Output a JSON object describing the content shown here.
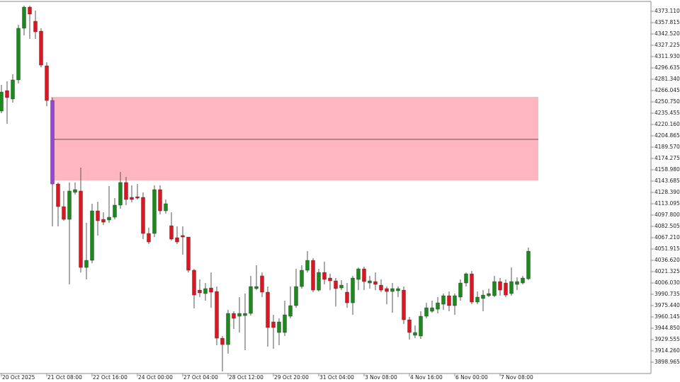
{
  "chart_data": {
    "type": "candlestick",
    "categories": [
      "20 Oct 2025",
      null,
      null,
      null,
      null,
      null,
      null,
      null,
      "21 Oct 08:00",
      null,
      null,
      null,
      null,
      null,
      null,
      null,
      "22 Oct 16:00",
      null,
      null,
      null,
      null,
      null,
      null,
      null,
      "24 Oct 00:00",
      null,
      null,
      null,
      null,
      null,
      null,
      null,
      "27 Oct 04:00",
      null,
      null,
      null,
      null,
      null,
      null,
      null,
      "28 Oct 12:00",
      null,
      null,
      null,
      null,
      null,
      null,
      null,
      "29 Oct 20:00",
      null,
      null,
      null,
      null,
      null,
      null,
      null,
      "31 Oct 04:00",
      null,
      null,
      null,
      null,
      null,
      null,
      null,
      "3 Nov 08:00",
      null,
      null,
      null,
      null,
      null,
      null,
      null,
      "4 Nov 16:00",
      null,
      null,
      null,
      null,
      null,
      null,
      null,
      "6 Nov 00:00",
      null,
      null,
      null,
      null,
      null,
      null,
      null,
      "7 Nov 08:00",
      null,
      null,
      null,
      null,
      null
    ],
    "open": [
      4238.3,
      4266.0,
      4254.6,
      4280.4,
      4350.2,
      4378.8,
      4359.7,
      4346.3,
      4299.5,
      4252.6,
      4139.8,
      4109.2,
      4092.0,
      4128.4,
      4130.3,
      4027.0,
      4036.6,
      4103.5,
      4092.0,
      4091.1,
      4094.9,
      4111.2,
      4141.8,
      4121.7,
      4122.6,
      4121.7,
      4072.9,
      4072.9,
      4132.2,
      4103.5,
      4083.4,
      4067.2,
      4070.1,
      4068.1,
      4023.2,
      3996.4,
      3991.7,
      3999.3,
      3994.5,
      3931.4,
      3922.8,
      3964.9,
      3961.1,
      3962.0,
      3964.9,
      3998.4,
      4015.6,
      3993.6,
      3953.4,
      3939.1,
      3939.1,
      3961.1,
      3975.4,
      4001.2,
      4023.2,
      4036.6,
      3996.4,
      4020.3,
      4012.7,
      4008.9,
      3999.3,
      3993.6,
      3979.2,
      4010.8,
      4025.1,
      4006.0,
      4007.9,
      4003.1,
      3998.4,
      3994.5,
      3995.5,
      3996.4,
      3956.3,
      3935.3,
      3934.3,
      3961.1,
      3967.8,
      3970.6,
      3977.3,
      3988.8,
      3975.4,
      3986.9,
      4006.0,
      4018.4,
      3980.2,
      3985.0,
      3988.8,
      3988.8,
      4007.9,
      4006.0,
      3991.7,
      4004.1,
      4006.0,
      4011.7
    ],
    "high": [
      4273.7,
      4278.5,
      4288.0,
      4354.9,
      4380.7,
      4380.7,
      4374.1,
      4350.2,
      4304.3,
      4256.5,
      4141.8,
      4130.3,
      4141.8,
      4141.8,
      4161.8,
      4087.3,
      4113.1,
      4115.9,
      4101.6,
      4137.0,
      4120.7,
      4156.1,
      4149.4,
      4137.9,
      4139.8,
      4128.4,
      4080.6,
      4137.9,
      4137.9,
      4118.8,
      4101.6,
      4082.5,
      4082.5,
      4068.1,
      4025.1,
      4010.8,
      4006.0,
      4020.3,
      4001.2,
      3934.3,
      3969.7,
      3967.8,
      3986.9,
      3991.7,
      4015.6,
      4029.9,
      4020.3,
      4001.2,
      3963.0,
      3958.2,
      3982.1,
      4001.2,
      4025.1,
      4029.9,
      4049.0,
      4039.5,
      4025.1,
      4034.7,
      4018.4,
      4012.7,
      4009.8,
      4006.0,
      4015.6,
      4027.0,
      4028.0,
      4015.6,
      4020.3,
      4010.8,
      4001.2,
      4006.0,
      4001.2,
      4001.2,
      3960.1,
      3948.6,
      3967.8,
      3979.2,
      3982.1,
      3986.9,
      3991.7,
      3994.5,
      3991.7,
      4010.8,
      4020.3,
      4022.3,
      3994.5,
      3996.4,
      3998.4,
      4015.6,
      4012.7,
      4010.8,
      4027.0,
      4013.6,
      4015.6,
      4053.8
    ],
    "low": [
      4235.4,
      4221.1,
      4249.8,
      4275.6,
      4340.6,
      4335.8,
      4335.8,
      4297.6,
      4245.0,
      4082.5,
      4082.5,
      4090.1,
      4004.1,
      4125.5,
      4020.3,
      4010.8,
      4032.8,
      4070.1,
      4084.4,
      4087.3,
      4092.0,
      4106.4,
      4111.2,
      4115.0,
      4118.8,
      4065.3,
      4058.6,
      4068.1,
      4098.7,
      4099.7,
      4063.4,
      4058.6,
      4044.2,
      4020.3,
      3971.6,
      3986.9,
      3982.1,
      3972.5,
      3921.9,
      3886.5,
      3910.4,
      3943.9,
      3939.1,
      3915.2,
      3962.0,
      3996.4,
      3986.9,
      3920.0,
      3917.1,
      3921.9,
      3934.3,
      3958.2,
      3972.5,
      3998.4,
      4020.3,
      3993.6,
      3994.5,
      4004.1,
      3996.4,
      3974.4,
      3996.4,
      3972.5,
      3963.0,
      3996.4,
      3996.4,
      3998.4,
      3996.4,
      3993.6,
      3977.3,
      3965.8,
      3986.9,
      3950.6,
      3929.5,
      3931.4,
      3930.5,
      3958.2,
      3965.8,
      3964.9,
      3969.7,
      3967.8,
      3963.0,
      3982.1,
      4001.2,
      3977.3,
      3977.3,
      3967.8,
      3986.9,
      3986.9,
      3988.8,
      3986.9,
      3988.8,
      3996.4,
      4004.1,
      4009.8
    ],
    "close": [
      4264.1,
      4256.5,
      4280.4,
      4350.2,
      4378.8,
      4369.3,
      4345.4,
      4300.4,
      4252.6,
      4139.8,
      4109.2,
      4092.0,
      4130.3,
      4132.2,
      4027.0,
      4036.6,
      4103.5,
      4090.1,
      4088.2,
      4094.9,
      4111.2,
      4141.8,
      4118.8,
      4118.8,
      4120.7,
      4072.9,
      4061.4,
      4132.2,
      4103.5,
      4113.1,
      4065.3,
      4061.4,
      4068.1,
      4023.2,
      3989.7,
      3992.6,
      3998.4,
      3993.6,
      3931.4,
      3922.8,
      3964.9,
      3958.2,
      3964.9,
      3964.9,
      4001.2,
      4001.2,
      3993.6,
      3945.8,
      3945.8,
      3953.4,
      3963.0,
      3975.4,
      4001.2,
      4023.2,
      4036.6,
      3996.4,
      4020.3,
      4010.8,
      4008.9,
      3998.4,
      4003.1,
      3979.2,
      4012.7,
      4025.1,
      4007.9,
      4008.9,
      4004.1,
      3996.4,
      3994.5,
      3998.4,
      3998.4,
      3956.3,
      3939.1,
      3939.1,
      3961.1,
      3972.5,
      3972.5,
      3979.2,
      3988.8,
      3975.4,
      3988.8,
      4006.0,
      4018.4,
      3980.2,
      3986.9,
      3989.7,
      3991.7,
      4007.9,
      3996.4,
      3989.7,
      4007.9,
      4007.9,
      4012.7,
      4049.0
    ],
    "up_color": "#1a8a1a",
    "down_color": "#e0141e",
    "highlight": {
      "index": 9,
      "color": "#9b45d6"
    },
    "zone": {
      "top": 4257.5,
      "bottom": 4144.6,
      "level": 4200.1,
      "start": 9,
      "color": "#ffb6c1"
    },
    "ylim": [
      3883.67,
      4386.49
    ],
    "yticks": [
      {
        "value": 4373.11,
        "label": "4373.110"
      },
      4357.815,
      {
        "value": 4342.52,
        "label": "4342.520"
      },
      4327.225,
      {
        "value": 4311.93,
        "label": "4311.930"
      },
      4296.635,
      {
        "value": 4281.34,
        "label": "4281.340"
      },
      4266.045,
      {
        "value": 4250.75,
        "label": "4250.750"
      },
      4235.455,
      {
        "value": 4220.16,
        "label": "4220.160"
      },
      4204.865,
      {
        "value": 4189.57,
        "label": "4189.570"
      },
      4174.275,
      {
        "value": 4158.98,
        "label": "4158.980"
      },
      4143.685,
      {
        "value": 4128.39,
        "label": "4128.390"
      },
      4113.095,
      {
        "value": 4097.8,
        "label": "4097.800"
      },
      4082.505,
      {
        "value": 4067.21,
        "label": "4067.210"
      },
      4051.915,
      {
        "value": 4036.62,
        "label": "4036.620"
      },
      4021.325,
      {
        "value": 4006.03,
        "label": "4006.030"
      },
      3990.735,
      {
        "value": 3975.44,
        "label": "3975.440"
      },
      3960.145,
      {
        "value": 3944.85,
        "label": "3944.850"
      },
      3929.555,
      {
        "value": 3914.26,
        "label": "3914.260"
      },
      3898.965
    ]
  }
}
